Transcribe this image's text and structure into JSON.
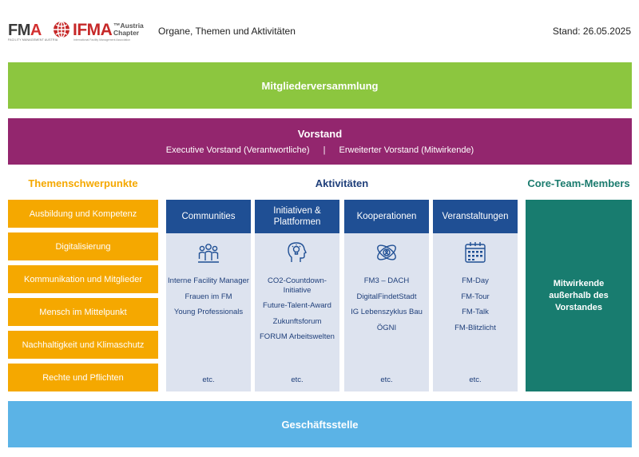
{
  "header": {
    "logo_fma_prefix": "FM",
    "logo_fma_suffix": "A",
    "logo_fma_sub": "FACILITY MANAGEMENT AUSTRIA",
    "logo_ifma": "IFMA",
    "logo_austria_1": "™Austria",
    "logo_austria_2": "Chapter",
    "logo_ifma_sub": "International Facility Management Association",
    "title": "Organe, Themen und Aktivitäten",
    "date": "Stand: 26.05.2025"
  },
  "mitgliederversammlung": "Mitgliederversammlung",
  "vorstand": {
    "title": "Vorstand",
    "executive": "Executive Vorstand (Verantwortliche)",
    "separator": "|",
    "erweitert": "Erweiterter Vorstand (Mitwirkende)"
  },
  "themen": {
    "heading": "Themenschwerpunkte",
    "items": [
      "Ausbildung und Kompetenz",
      "Digitalisierung",
      "Kommunikation und Mitglieder",
      "Mensch im Mittelpunkt",
      "Nachhaltigkeit und Klimaschutz",
      "Rechte und Pflichten"
    ]
  },
  "aktivitaeten": {
    "heading": "Aktivitäten",
    "columns": [
      {
        "title": "Communities",
        "icon": "people-group-icon",
        "items": [
          "Interne Facility Manager",
          "Frauen im FM",
          "Young Professionals"
        ],
        "etc": "etc."
      },
      {
        "title": "Initiativen & Plattformen",
        "icon": "head-lightbulb-icon",
        "items": [
          "CO2-Countdown-Initiative",
          "Future-Talent-Award",
          "Zukunftsforum",
          "FORUM Arbeitswelten"
        ],
        "etc": "etc."
      },
      {
        "title": "Kooperationen",
        "icon": "network-atom-icon",
        "items": [
          "FM3 – DACH",
          "DigitalFindetStadt",
          "IG Lebenszyklus Bau",
          "ÖGNI"
        ],
        "etc": "etc."
      },
      {
        "title": "Veranstaltungen",
        "icon": "calendar-icon",
        "items": [
          "FM-Day",
          "FM-Tour",
          "FM-Talk",
          "FM-Blitzlicht"
        ],
        "etc": "etc."
      }
    ]
  },
  "core_team": {
    "heading": "Core-Team-Members",
    "text": "Mitwirkende außerhalb des Vorstandes"
  },
  "geschaeftsstelle": "Geschäftsstelle",
  "colors": {
    "green": "#8cc63f",
    "purple": "#93266e",
    "orange": "#f5a800",
    "navy": "#1f4f94",
    "light_blue_bg": "#dde3ef",
    "teal": "#187c6f",
    "sky": "#5bb3e6"
  }
}
